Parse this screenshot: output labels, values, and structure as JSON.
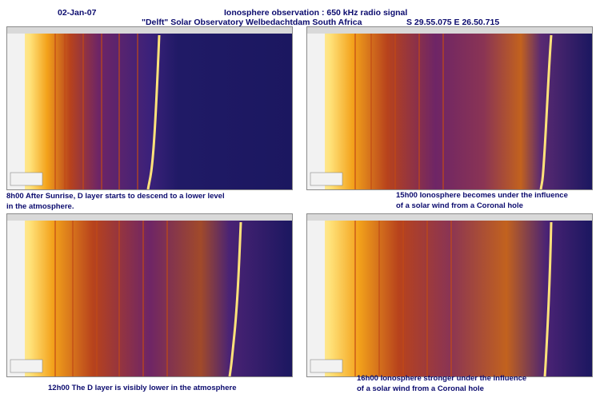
{
  "header": {
    "date": "02-Jan-07",
    "title": "Ionosphere observation : 650 kHz radio signal",
    "observatory": "\"Delft\" Solar Observatory Welbedachtdam South Africa",
    "coordinates": "S 29.55.075   E 26.50.715"
  },
  "panels": [
    {
      "time": "8h00",
      "caption_lines": [
        "8h00 After Sunrise, D layer starts to descend to a lower level",
        "in the atmosphere."
      ]
    },
    {
      "time": "15h00",
      "caption_lines": [
        "15h00 Ionosphere becomes under the influence",
        "of a solar wind from a Coronal hole"
      ]
    },
    {
      "time": "12h00",
      "caption_lines": [
        "12h00   The D layer is visibly lower in the atmosphere"
      ]
    },
    {
      "time": "16h00",
      "caption_lines": [
        "16h00 Ionosphere stronger under the influence",
        "of a solar wind from a Coronal hole"
      ]
    }
  ],
  "colors": {
    "heading": "#0b0b6e",
    "background": "#2a1f6e",
    "band": "#f3a21b",
    "trace": "#ffe27a"
  }
}
